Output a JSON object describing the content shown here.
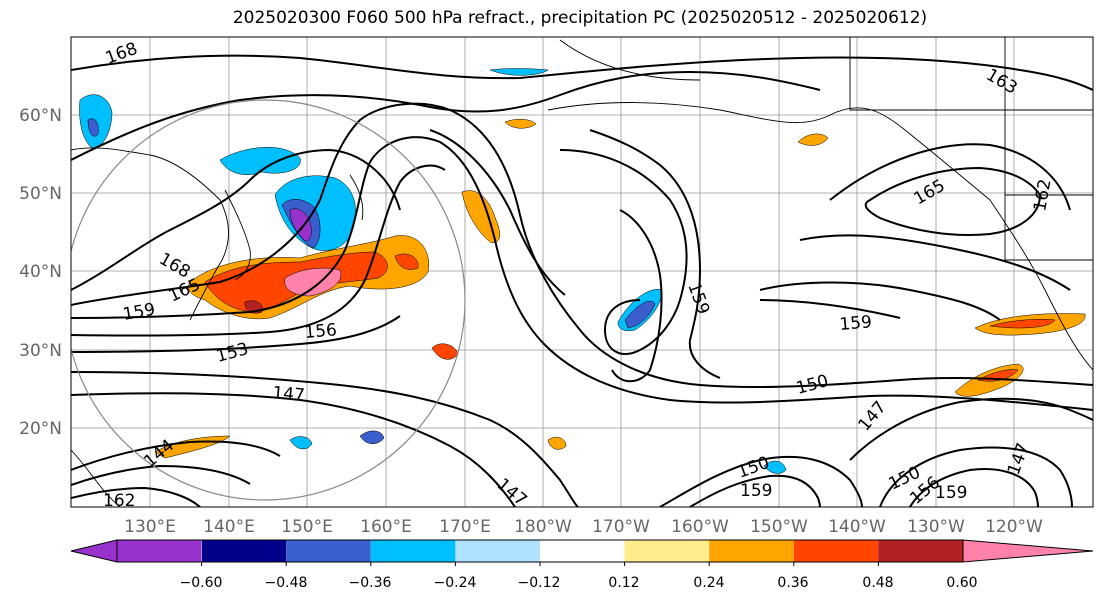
{
  "title": "2025020300 F060 500 hPa refract., precipitation PC (2025020512 - 2025020612)",
  "lat_labels": [
    "60°N",
    "50°N",
    "40°N",
    "30°N",
    "20°N"
  ],
  "lon_labels": [
    "130°E",
    "140°E",
    "150°E",
    "160°E",
    "170°E",
    "180°W",
    "170°W",
    "160°W",
    "150°W",
    "140°W",
    "130°W",
    "120°W"
  ],
  "contour_labels": [
    "168",
    "163",
    "165",
    "162",
    "168",
    "165",
    "159",
    "156",
    "153",
    "147",
    "159",
    "150",
    "147",
    "159",
    "150",
    "159",
    "147",
    "144",
    "150",
    "156",
    "162",
    "147",
    "159"
  ],
  "colorbar": {
    "ticks": [
      "−0.60",
      "−0.48",
      "−0.36",
      "−0.24",
      "−0.12",
      "0.12",
      "0.24",
      "0.36",
      "0.48",
      "0.60"
    ],
    "colors": [
      "#9932cc",
      "#00008b",
      "#3a5fcd",
      "#00bfff",
      "#b0e2ff",
      "#ffffff",
      "#ffec8b",
      "#ffa500",
      "#ff4500",
      "#b22222",
      "#ff82ab"
    ]
  },
  "colors": {
    "axis": "#000000",
    "grid": "#999999",
    "tick_label": "#666666"
  }
}
